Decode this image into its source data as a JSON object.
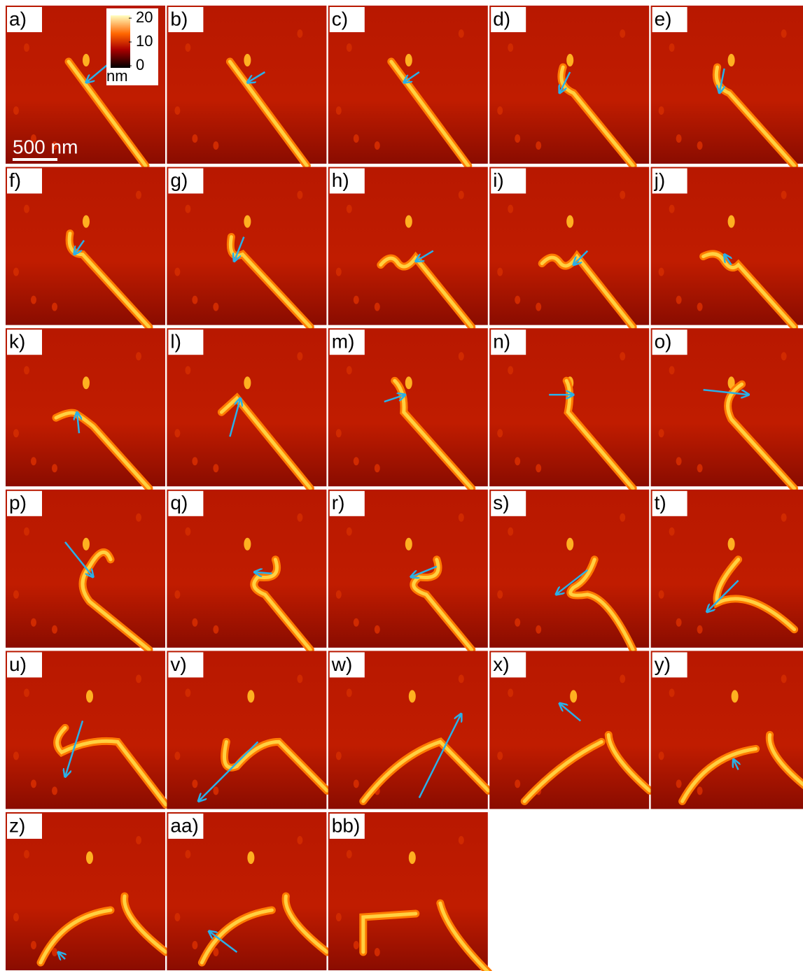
{
  "panels": [
    "a)",
    "b)",
    "c)",
    "d)",
    "e)",
    "f)",
    "g)",
    "h)",
    "i)",
    "j)",
    "k)",
    "l)",
    "m)",
    "n)",
    "o)",
    "p)",
    "q)",
    "r)",
    "s)",
    "t)",
    "u)",
    "v)",
    "w)",
    "x)",
    "y)",
    "z)",
    "aa)",
    "bb)"
  ],
  "colorbar": {
    "ticks": [
      20,
      10,
      0
    ],
    "unit": "nm"
  },
  "scale_bar": "500 nm"
}
